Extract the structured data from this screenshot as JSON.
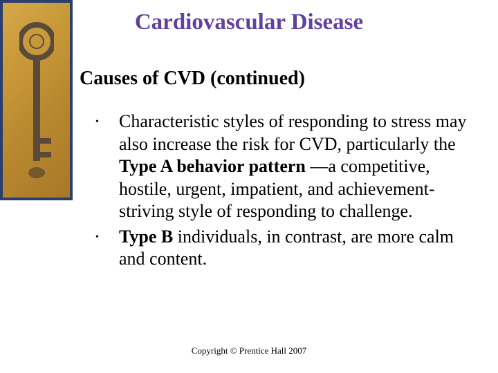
{
  "slide": {
    "title": "Cardiovascular Disease",
    "title_color": "#6040a0",
    "title_fontsize": 33,
    "subtitle": "Causes of CVD (continued)",
    "subtitle_fontsize": 28,
    "subtitle_color": "#000000",
    "bullets": [
      {
        "segments": [
          {
            "text": "Characteristic styles of responding to stress may also increase the risk for CVD, particularly the ",
            "bold": false
          },
          {
            "text": "Type A behavior pattern ",
            "bold": true
          },
          {
            "text": "—a competitive, hostile, urgent, impatient, and achievement-striving style of responding to challenge.",
            "bold": false
          }
        ]
      },
      {
        "segments": [
          {
            "text": "Type B ",
            "bold": true
          },
          {
            "text": "individuals, in contrast, are more calm and content.",
            "bold": false
          }
        ]
      }
    ],
    "bullet_fontsize": 26,
    "bullet_color": "#000000",
    "copyright": "Copyright © Prentice Hall 2007",
    "copyright_fontsize": 13
  },
  "sidebar": {
    "border_color": "#2a3f6f",
    "bg_gradient_start": "#d4a849",
    "bg_gradient_end": "#a87828",
    "key_color": "#5a4a3a"
  }
}
